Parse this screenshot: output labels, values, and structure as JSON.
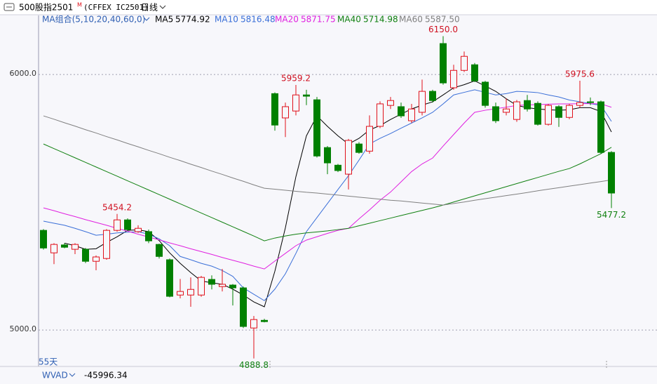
{
  "chart_data": {
    "type": "candlestick",
    "title": "500股指2501",
    "title_badge": "M",
    "code": "(CFFEX IC2501)",
    "period": "日线",
    "ma_group": "MA组合(5,10,20,40,60,0)",
    "days_label": "55天",
    "up_color": "#e0101a",
    "down_color": "#008000",
    "open": [
      5390,
      5302,
      5333,
      5316,
      5316,
      5269,
      5280,
      5390,
      5431,
      5385,
      5385,
      5335,
      5275,
      5137,
      5137,
      5137,
      5198,
      5170,
      5176,
      5165,
      5008,
      5038,
      5925,
      5830,
      5857,
      5920,
      5901,
      5714,
      5645,
      5610,
      5728,
      5700,
      5797,
      5879,
      5874,
      5819,
      5852,
      5934,
      6121,
      5948,
      6016,
      6038,
      5970,
      5874,
      5852,
      5824,
      5898,
      5887,
      5805,
      5874,
      5832,
      5879,
      5893,
      5893,
      5695
    ],
    "high": [
      5395,
      5340,
      5340,
      5340,
      5321,
      5292,
      5395,
      5454.2,
      5437,
      5410,
      5393,
      5338,
      5280,
      5200,
      5206,
      5212,
      5214,
      5239,
      5180,
      5170,
      5055,
      5044,
      5930,
      5890,
      5959.2,
      5940,
      5912,
      5720,
      5650,
      5748,
      5735,
      5840,
      5895,
      5912,
      5890,
      5885,
      5980,
      5940,
      6150,
      6038,
      6090,
      6045,
      5975,
      5890,
      5906,
      5900,
      5920,
      5895,
      5885,
      5880,
      5885,
      5975.6,
      5910,
      5898,
      5700
    ],
    "low": [
      5315,
      5258,
      5320,
      5297,
      5262,
      5234,
      5275,
      5385,
      5388,
      5380,
      5340,
      5280,
      5128,
      5124,
      5091,
      5130,
      5159,
      5151,
      5096,
      5008,
      4888.8,
      5030,
      5780,
      5755,
      5840,
      5880,
      5675,
      5610,
      5618,
      5550,
      5690,
      5690,
      5790,
      5865,
      5830,
      5810,
      5840,
      5890,
      5960,
      5940,
      6010,
      5970,
      5870,
      5810,
      5840,
      5815,
      5855,
      5800,
      5800,
      5795,
      5825,
      5870,
      5880,
      5690,
      5477.2
    ],
    "close": [
      5321,
      5335,
      5324,
      5335,
      5269,
      5286,
      5390,
      5431,
      5393,
      5398,
      5349,
      5288,
      5132,
      5151,
      5159,
      5206,
      5179,
      5179,
      5165,
      5014,
      5041,
      5033,
      5802,
      5874,
      5920,
      5915,
      5681,
      5654,
      5624,
      5742,
      5695,
      5797,
      5885,
      5898,
      5838,
      5865,
      5934,
      5898,
      5967,
      6016,
      6071,
      5975,
      5879,
      5819,
      5865,
      5893,
      5865,
      5805,
      5879,
      5832,
      5879,
      5890,
      5890,
      5695,
      5536
    ],
    "series": [
      {
        "name": "MA5",
        "color": "#000000",
        "values": [
          null,
          null,
          5340,
          5330,
          5316,
          5318,
          5343,
          5365,
          5390,
          5392,
          5385,
          5350,
          5302,
          5261,
          5225,
          5192,
          5185,
          5179,
          5160,
          5137,
          5110,
          5091,
          5230,
          5400,
          5600,
          5760,
          5838,
          5797,
          5760,
          5728,
          5750,
          5783,
          5800,
          5824,
          5845,
          5865,
          5880,
          5893,
          5920,
          5948,
          5960,
          5975,
          5955,
          5934,
          5905,
          5879,
          5870,
          5865,
          5862,
          5860,
          5862,
          5870,
          5870,
          5855,
          5774.92
        ]
      },
      {
        "name": "MA10",
        "color": "#3a6fd8",
        "values": [
          5426,
          5418,
          5410,
          5398,
          5385,
          5371,
          5375,
          5380,
          5383,
          5385,
          5375,
          5357,
          5330,
          5288,
          5275,
          5261,
          5250,
          5233,
          5210,
          5165,
          5140,
          5115,
          5160,
          5220,
          5300,
          5385,
          5440,
          5495,
          5550,
          5604,
          5665,
          5728,
          5750,
          5769,
          5790,
          5810,
          5830,
          5852,
          5885,
          5920,
          5930,
          5940,
          5930,
          5920,
          5925,
          5934,
          5932,
          5929,
          5920,
          5912,
          5900,
          5893,
          5886,
          5879,
          5816.48
        ]
      },
      {
        "name": "MA20",
        "color": "#e020e0",
        "values": [
          5478,
          5467,
          5455,
          5444,
          5432,
          5421,
          5410,
          5398,
          5387,
          5375,
          5364,
          5353,
          5341,
          5330,
          5318,
          5307,
          5296,
          5284,
          5273,
          5262,
          5250,
          5239,
          5270,
          5300,
          5330,
          5352,
          5365,
          5378,
          5390,
          5398,
          5435,
          5470,
          5508,
          5540,
          5580,
          5620,
          5650,
          5673,
          5720,
          5765,
          5810,
          5852,
          5860,
          5866,
          5872,
          5879,
          5881,
          5882,
          5884,
          5885,
          5885,
          5886,
          5886,
          5885,
          5871.75
        ]
      },
      {
        "name": "MA40",
        "color": "#108010",
        "values": [
          5728,
          5710,
          5692,
          5674,
          5656,
          5638,
          5620,
          5602,
          5584,
          5566,
          5548,
          5530,
          5512,
          5494,
          5476,
          5458,
          5440,
          5422,
          5404,
          5386,
          5368,
          5349,
          5360,
          5368,
          5375,
          5380,
          5384,
          5388,
          5393,
          5398,
          5408,
          5418,
          5428,
          5438,
          5448,
          5458,
          5468,
          5478,
          5489,
          5501,
          5513,
          5525,
          5537,
          5549,
          5561,
          5573,
          5585,
          5597,
          5609,
          5621,
          5632,
          5650,
          5670,
          5690,
          5714.98
        ]
      },
      {
        "name": "MA60",
        "color": "#808080",
        "values": [
          5838,
          5825,
          5811,
          5798,
          5784,
          5771,
          5757,
          5744,
          5730,
          5717,
          5703,
          5690,
          5676,
          5663,
          5649,
          5636,
          5622,
          5609,
          5595,
          5582,
          5568,
          5555,
          5551,
          5547,
          5543,
          5539,
          5536,
          5532,
          5528,
          5524,
          5520,
          5516,
          5512,
          5508,
          5505,
          5501,
          5497,
          5493,
          5489,
          5495,
          5501,
          5508,
          5514,
          5520,
          5526,
          5532,
          5538,
          5545,
          5551,
          5557,
          5563,
          5569,
          5575,
          5581,
          5587.5
        ],
        "value_labels": [
          null,
          null,
          null,
          null,
          null,
          null,
          null,
          null,
          null,
          null,
          null,
          null,
          null,
          null,
          null,
          null,
          null,
          null,
          null,
          null,
          null,
          null,
          null,
          null,
          null,
          null,
          null,
          null,
          null,
          null,
          null,
          null,
          null,
          null,
          null,
          null,
          null,
          null,
          null,
          null,
          null,
          null,
          null,
          null,
          null,
          null,
          null,
          null,
          null,
          null,
          null,
          null,
          null,
          null,
          "5587.50"
        ]
      }
    ],
    "ylim": [
      4863,
      6231
    ],
    "yticks": [
      {
        "value": 6000,
        "label": "6000.0"
      },
      {
        "value": 5000,
        "label": "5000.0"
      }
    ],
    "grid": true,
    "annotations": [
      {
        "value": 5454.2,
        "label": "5454.2"
      },
      {
        "value": 5959.2,
        "label": "5959.2"
      },
      {
        "value": 6150,
        "label": "6150.0"
      },
      {
        "value": 5975.6,
        "label": "5975.6"
      },
      {
        "value": 4888.8,
        "label": "4888.8"
      },
      {
        "value": 5477.2,
        "label": "5477.2"
      }
    ],
    "indicator": {
      "name": "WVAD",
      "value": -45996.34
    }
  }
}
